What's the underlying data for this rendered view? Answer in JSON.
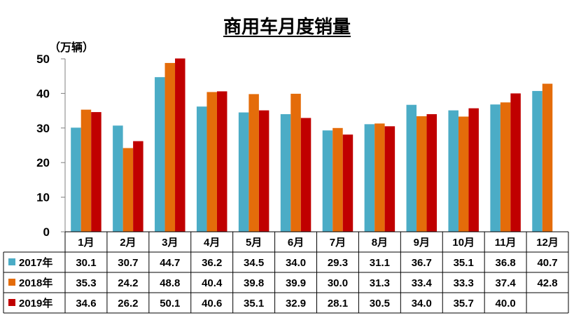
{
  "chart_data": {
    "type": "bar",
    "title": "商用车月度销量",
    "unit_label": "（万辆）",
    "ylim": [
      0,
      50
    ],
    "yticks": [
      "0",
      "10",
      "20",
      "30",
      "40",
      "50"
    ],
    "categories": [
      "1月",
      "2月",
      "3月",
      "4月",
      "5月",
      "6月",
      "7月",
      "8月",
      "9月",
      "10月",
      "11月",
      "12月"
    ],
    "series": [
      {
        "name": "2017年",
        "color": "#4bacc6",
        "values": [
          30.1,
          30.7,
          44.7,
          36.2,
          34.5,
          34.0,
          29.3,
          31.1,
          36.7,
          35.1,
          36.8,
          40.7
        ],
        "labels": [
          "30.1",
          "30.7",
          "44.7",
          "36.2",
          "34.5",
          "34.0",
          "29.3",
          "31.1",
          "36.7",
          "35.1",
          "36.8",
          "40.7"
        ]
      },
      {
        "name": "2018年",
        "color": "#e46c0a",
        "values": [
          35.3,
          24.2,
          48.8,
          40.4,
          39.8,
          39.9,
          30.0,
          31.3,
          33.4,
          33.3,
          37.4,
          42.8
        ],
        "labels": [
          "35.3",
          "24.2",
          "48.8",
          "40.4",
          "39.8",
          "39.9",
          "30.0",
          "31.3",
          "33.4",
          "33.3",
          "37.4",
          "42.8"
        ]
      },
      {
        "name": "2019年",
        "color": "#c00000",
        "values": [
          34.6,
          26.2,
          50.1,
          40.6,
          35.1,
          32.9,
          28.1,
          30.5,
          34.0,
          35.7,
          40.0,
          null
        ],
        "labels": [
          "34.6",
          "26.2",
          "50.1",
          "40.6",
          "35.1",
          "32.9",
          "28.1",
          "30.5",
          "34.0",
          "35.7",
          "40.0",
          ""
        ]
      }
    ],
    "grid": false,
    "legend": "data-table"
  }
}
